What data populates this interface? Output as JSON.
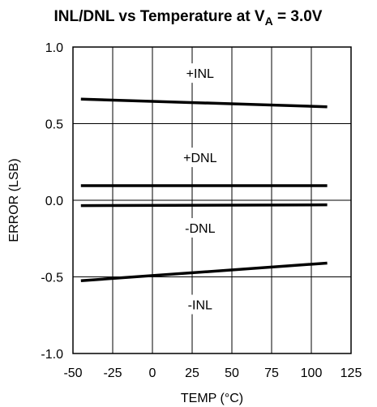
{
  "chart_data": {
    "type": "line",
    "title_main": "INL/DNL vs Temperature at V",
    "title_sub": "A",
    "title_tail": " = 3.0V",
    "xlabel": "TEMP (°C)",
    "ylabel": "ERROR (LSB)",
    "xlim": [
      -50,
      125
    ],
    "ylim": [
      -1.0,
      1.0
    ],
    "x_ticks": [
      -50,
      -25,
      0,
      25,
      50,
      75,
      100,
      125
    ],
    "x_tick_labels": [
      "-50",
      "-25",
      "0",
      "25",
      "50",
      "75",
      "100",
      "125"
    ],
    "y_ticks": [
      1.0,
      0.5,
      0.0,
      -0.5,
      -1.0
    ],
    "y_tick_labels": [
      "1.0",
      "0.5",
      "0.0",
      "-0.5",
      "-1.0"
    ],
    "grid": true,
    "series": [
      {
        "name": "+INL",
        "x": [
          -45,
          110
        ],
        "y": [
          0.66,
          0.61
        ],
        "label_pos": [
          30,
          0.83
        ]
      },
      {
        "name": "+DNL",
        "x": [
          -45,
          110
        ],
        "y": [
          0.095,
          0.095
        ],
        "label_pos": [
          30,
          0.28
        ]
      },
      {
        "name": "-DNL",
        "x": [
          -45,
          110
        ],
        "y": [
          -0.035,
          -0.03
        ],
        "label_pos": [
          30,
          -0.18
        ]
      },
      {
        "name": "-INL",
        "x": [
          -45,
          110
        ],
        "y": [
          -0.525,
          -0.41
        ],
        "label_pos": [
          30,
          -0.68
        ]
      }
    ]
  }
}
